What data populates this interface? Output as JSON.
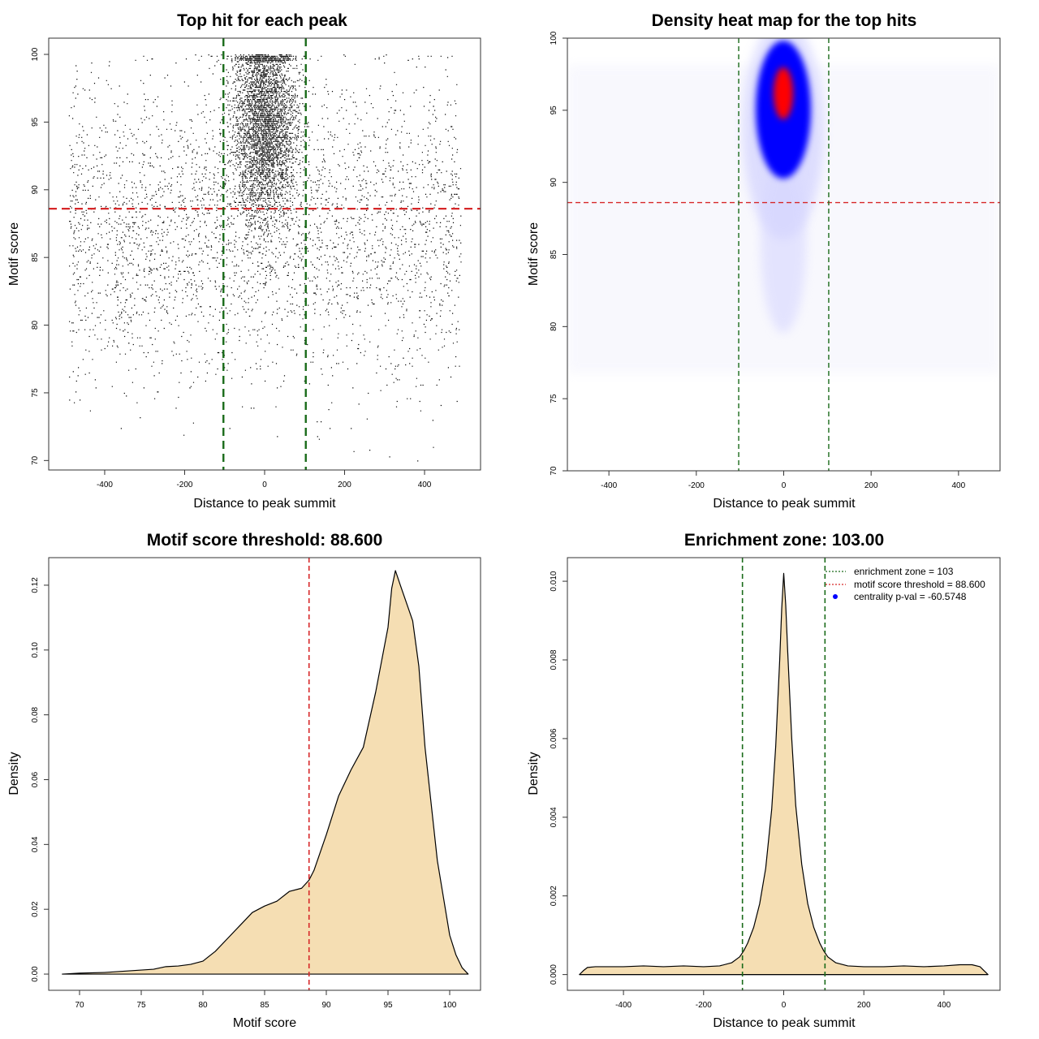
{
  "colors": {
    "background": "#ffffff",
    "points": "#000000",
    "threshold_line": "#d62728",
    "zone_line": "#1a6b1a",
    "fill": "#f5deb3",
    "heat_high": "#ff0000",
    "heat_mid": "#0000ff",
    "heat_low": "#ffffff",
    "legend_dot": "#0000ff"
  },
  "chart_data": [
    {
      "type": "scatter",
      "title": "Top hit for each peak",
      "xlabel": "Distance to peak summit",
      "ylabel": "Motif score",
      "xlim": [
        -540,
        540
      ],
      "ylim": [
        69.3,
        101.2
      ],
      "xticks": [
        -400,
        -200,
        0,
        200,
        400
      ],
      "xtick_labels": [
        "-400",
        "-200",
        "0",
        "200",
        "400"
      ],
      "yticks": [
        70,
        75,
        80,
        85,
        90,
        95,
        100
      ],
      "ytick_labels": [
        "70",
        "75",
        "80",
        "85",
        "90",
        "95",
        "100"
      ],
      "hline": 88.6,
      "vlines": [
        -103,
        103
      ],
      "distribution": {
        "x_range": [
          -490,
          490
        ],
        "central_sd": 40,
        "central_score_mean": 95,
        "central_score_sd": 3.5,
        "background_score_mean": 87,
        "background_score_sd": 5.5,
        "n_central": 5200,
        "n_background": 3400
      }
    },
    {
      "type": "heatmap",
      "title": "Density heat map for the top hits",
      "xlabel": "Distance to peak summit",
      "ylabel": "Motif score",
      "xlim": [
        -495,
        495
      ],
      "ylim": [
        70,
        100
      ],
      "xticks": [
        -400,
        -200,
        0,
        200,
        400
      ],
      "xtick_labels": [
        "-400",
        "-200",
        "0",
        "200",
        "400"
      ],
      "yticks": [
        70,
        75,
        80,
        85,
        90,
        95,
        100
      ],
      "ytick_labels": [
        "70",
        "75",
        "80",
        "85",
        "90",
        "95",
        "100"
      ],
      "hline": 88.6,
      "vlines": [
        -103,
        103
      ],
      "peak": {
        "x": 0,
        "y": 96
      }
    },
    {
      "type": "area",
      "title": "Motif score threshold: 88.600",
      "xlabel": "Motif score",
      "ylabel": "Density",
      "xlim": [
        67.5,
        102.5
      ],
      "ylim": [
        -0.005,
        0.1285
      ],
      "xticks": [
        70,
        75,
        80,
        85,
        90,
        95,
        100
      ],
      "xtick_labels": [
        "70",
        "75",
        "80",
        "85",
        "90",
        "95",
        "100"
      ],
      "yticks": [
        0,
        0.02,
        0.04,
        0.06,
        0.08,
        0.1,
        0.12
      ],
      "ytick_labels": [
        "0.00",
        "0.02",
        "0.04",
        "0.06",
        "0.08",
        "0.10",
        "0.12"
      ],
      "vline": 88.6,
      "x": [
        68.6,
        70,
        72,
        74,
        76,
        77,
        78,
        79,
        80,
        81,
        82,
        83,
        84,
        85,
        86,
        87,
        88,
        88.6,
        89,
        90,
        91,
        92,
        93,
        94,
        95,
        95.3,
        95.6,
        96,
        97,
        97.5,
        98,
        99,
        100,
        100.5,
        101,
        101.5
      ],
      "y": [
        0,
        0.0003,
        0.0005,
        0.001,
        0.0015,
        0.0023,
        0.0025,
        0.003,
        0.004,
        0.007,
        0.011,
        0.015,
        0.019,
        0.021,
        0.0225,
        0.0255,
        0.0265,
        0.029,
        0.032,
        0.043,
        0.055,
        0.063,
        0.07,
        0.087,
        0.107,
        0.119,
        0.1245,
        0.12,
        0.109,
        0.095,
        0.07,
        0.035,
        0.012,
        0.006,
        0.002,
        0
      ]
    },
    {
      "type": "area",
      "title": "Enrichment zone: 103.00",
      "xlabel": "Distance to peak summit",
      "ylabel": "Density",
      "xlim": [
        -540,
        540
      ],
      "ylim": [
        -0.0004,
        0.0106
      ],
      "xticks": [
        -400,
        -200,
        0,
        200,
        400
      ],
      "xtick_labels": [
        "-400",
        "-200",
        "0",
        "200",
        "400"
      ],
      "yticks": [
        0,
        0.002,
        0.004,
        0.006,
        0.008,
        0.01
      ],
      "ytick_labels": [
        "0.000",
        "0.002",
        "0.004",
        "0.006",
        "0.008",
        "0.010"
      ],
      "vlines": [
        -103,
        103
      ],
      "x": [
        -510,
        -500,
        -490,
        -470,
        -440,
        -400,
        -350,
        -300,
        -250,
        -200,
        -160,
        -130,
        -110,
        -100,
        -90,
        -75,
        -60,
        -45,
        -30,
        -20,
        -10,
        -5,
        0,
        5,
        10,
        20,
        30,
        45,
        60,
        75,
        90,
        100,
        110,
        130,
        160,
        200,
        250,
        300,
        350,
        400,
        440,
        470,
        490,
        500,
        510
      ],
      "y": [
        0,
        0.0001,
        0.00018,
        0.0002,
        0.0002,
        0.0002,
        0.00022,
        0.0002,
        0.00022,
        0.0002,
        0.00022,
        0.0003,
        0.00045,
        0.0006,
        0.0008,
        0.0012,
        0.0018,
        0.0027,
        0.0042,
        0.0058,
        0.008,
        0.0093,
        0.0102,
        0.0094,
        0.0082,
        0.006,
        0.0043,
        0.0028,
        0.0018,
        0.0012,
        0.0008,
        0.0006,
        0.00045,
        0.0003,
        0.00022,
        0.0002,
        0.0002,
        0.00022,
        0.0002,
        0.00022,
        0.00025,
        0.00025,
        0.0002,
        0.0001,
        0
      ],
      "legend": {
        "placement": "top-right",
        "entries": [
          {
            "label": "enrichment zone = 103",
            "style": "dotted",
            "color": "#1a6b1a"
          },
          {
            "label": "motif score threshold = 88.600",
            "style": "dotted",
            "color": "#d62728"
          },
          {
            "label": "centrality p-val = -60.5748",
            "style": "dot",
            "color": "#0000ff"
          }
        ]
      }
    }
  ]
}
